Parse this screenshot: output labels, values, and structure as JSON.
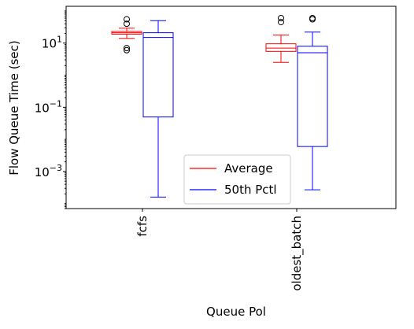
{
  "chart_data": {
    "type": "box",
    "xlabel": "Queue Pol",
    "ylabel": "Flow Queue Time (sec)",
    "yscale": "log",
    "ylim": [
      7e-05,
      140
    ],
    "categories": [
      "fcfs",
      "oldest_batch"
    ],
    "yticks": [
      {
        "value": 10,
        "base": "10",
        "exp": "1"
      },
      {
        "value": 0.1,
        "base": "10",
        "exp": "−1"
      },
      {
        "value": 0.001,
        "base": "10",
        "exp": "−3"
      }
    ],
    "series": [
      {
        "name": "Average",
        "color": "#ff0000",
        "boxes": [
          {
            "category": "fcfs",
            "whisker_low": 14,
            "q1": 19,
            "median": 21,
            "q3": 23,
            "whisker_high": 29,
            "fliers": [
              6,
              7,
              40,
              55
            ]
          },
          {
            "category": "oldest_batch",
            "whisker_low": 2.5,
            "q1": 5.5,
            "median": 7.0,
            "q3": 9.5,
            "whisker_high": 18,
            "fliers": [
              45,
              60
            ]
          }
        ]
      },
      {
        "name": "50th Pctl",
        "color": "#0000ff",
        "boxes": [
          {
            "category": "fcfs",
            "whisker_low": 0.00016,
            "q1": 0.05,
            "median": 15,
            "q3": 21,
            "whisker_high": 50,
            "fliers": []
          },
          {
            "category": "oldest_batch",
            "whisker_low": 0.00027,
            "q1": 0.006,
            "median": 5.0,
            "q3": 8.0,
            "whisker_high": 22,
            "fliers": [
              55,
              60
            ]
          }
        ]
      }
    ],
    "legend": {
      "position": "lower-center",
      "entries": [
        "Average",
        "50th Pctl"
      ]
    },
    "grid": false
  }
}
